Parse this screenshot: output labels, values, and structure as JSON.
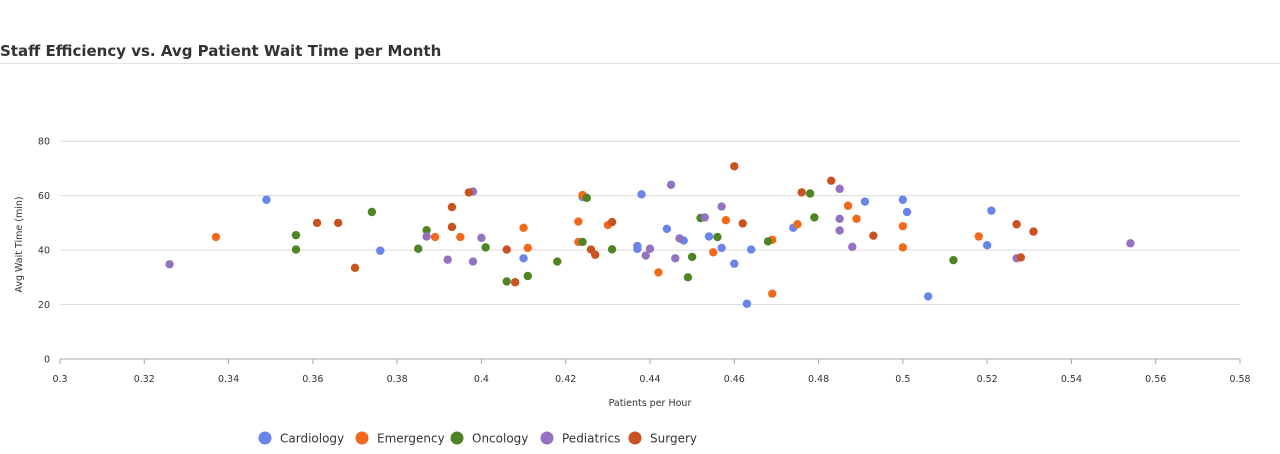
{
  "colors": {
    "Cardiology": "#6b84ea",
    "Emergency": "#f2691e",
    "Oncology": "#4f8424",
    "Pediatrics": "#9373c0",
    "Surgery": "#c9521f",
    "grid": "#dcdcdc",
    "axis": "#a8a8a8"
  },
  "chart_data": {
    "type": "scatter",
    "title": "Staff Efficiency vs. Avg Patient Wait Time per Month",
    "xlabel": "Patients per Hour",
    "ylabel": "Avg Wait Time (min)",
    "xlim": [
      0.3,
      0.58
    ],
    "ylim": [
      0,
      90
    ],
    "x_ticks": [
      "0.3",
      "0.32",
      "0.34",
      "0.36",
      "0.38",
      "0.4",
      "0.42",
      "0.44",
      "0.46",
      "0.48",
      "0.5",
      "0.52",
      "0.54",
      "0.56",
      "0.58"
    ],
    "y_ticks": [
      "0",
      "20",
      "40",
      "60",
      "80"
    ],
    "grid": true,
    "legend_position": "bottom",
    "series": [
      {
        "name": "Cardiology",
        "points": [
          [
            0.349,
            58.5
          ],
          [
            0.376,
            39.8
          ],
          [
            0.41,
            37.0
          ],
          [
            0.424,
            59.5
          ],
          [
            0.437,
            40.5
          ],
          [
            0.437,
            41.5
          ],
          [
            0.438,
            60.5
          ],
          [
            0.444,
            47.8
          ],
          [
            0.448,
            43.5
          ],
          [
            0.454,
            45.0
          ],
          [
            0.457,
            40.8
          ],
          [
            0.46,
            35.0
          ],
          [
            0.463,
            20.3
          ],
          [
            0.464,
            40.2
          ],
          [
            0.474,
            48.2
          ],
          [
            0.491,
            57.8
          ],
          [
            0.5,
            58.5
          ],
          [
            0.501,
            54.0
          ],
          [
            0.506,
            23.0
          ],
          [
            0.52,
            41.8
          ],
          [
            0.521,
            54.5
          ]
        ]
      },
      {
        "name": "Emergency",
        "points": [
          [
            0.337,
            44.8
          ],
          [
            0.389,
            44.8
          ],
          [
            0.395,
            44.8
          ],
          [
            0.41,
            48.2
          ],
          [
            0.411,
            40.8
          ],
          [
            0.423,
            50.5
          ],
          [
            0.423,
            43.0
          ],
          [
            0.424,
            60.2
          ],
          [
            0.43,
            49.2
          ],
          [
            0.442,
            31.8
          ],
          [
            0.455,
            39.2
          ],
          [
            0.458,
            51.0
          ],
          [
            0.469,
            24.0
          ],
          [
            0.469,
            43.8
          ],
          [
            0.475,
            49.5
          ],
          [
            0.487,
            56.3
          ],
          [
            0.489,
            51.5
          ],
          [
            0.5,
            48.8
          ],
          [
            0.5,
            41.0
          ],
          [
            0.518,
            45.0
          ]
        ]
      },
      {
        "name": "Oncology",
        "points": [
          [
            0.356,
            40.2
          ],
          [
            0.356,
            45.5
          ],
          [
            0.374,
            54.0
          ],
          [
            0.385,
            40.5
          ],
          [
            0.387,
            47.3
          ],
          [
            0.401,
            41.0
          ],
          [
            0.406,
            28.5
          ],
          [
            0.411,
            30.5
          ],
          [
            0.418,
            35.8
          ],
          [
            0.424,
            43.0
          ],
          [
            0.425,
            59.2
          ],
          [
            0.431,
            40.3
          ],
          [
            0.449,
            30.0
          ],
          [
            0.45,
            37.5
          ],
          [
            0.452,
            51.8
          ],
          [
            0.456,
            44.8
          ],
          [
            0.468,
            43.2
          ],
          [
            0.478,
            60.8
          ],
          [
            0.479,
            52.0
          ],
          [
            0.512,
            36.3
          ]
        ]
      },
      {
        "name": "Pediatrics",
        "points": [
          [
            0.326,
            34.8
          ],
          [
            0.387,
            45.0
          ],
          [
            0.392,
            36.5
          ],
          [
            0.398,
            61.5
          ],
          [
            0.398,
            35.8
          ],
          [
            0.4,
            44.5
          ],
          [
            0.439,
            38.0
          ],
          [
            0.44,
            40.5
          ],
          [
            0.445,
            64.0
          ],
          [
            0.446,
            37.0
          ],
          [
            0.447,
            44.3
          ],
          [
            0.453,
            52.0
          ],
          [
            0.457,
            56.0
          ],
          [
            0.485,
            51.5
          ],
          [
            0.485,
            62.5
          ],
          [
            0.485,
            47.2
          ],
          [
            0.488,
            41.2
          ],
          [
            0.527,
            37.0
          ],
          [
            0.554,
            42.5
          ]
        ]
      },
      {
        "name": "Surgery",
        "points": [
          [
            0.361,
            50.0
          ],
          [
            0.366,
            50.0
          ],
          [
            0.37,
            33.5
          ],
          [
            0.393,
            48.5
          ],
          [
            0.393,
            55.8
          ],
          [
            0.397,
            61.2
          ],
          [
            0.406,
            40.2
          ],
          [
            0.408,
            28.2
          ],
          [
            0.426,
            40.2
          ],
          [
            0.427,
            38.3
          ],
          [
            0.431,
            50.3
          ],
          [
            0.46,
            70.8
          ],
          [
            0.462,
            49.8
          ],
          [
            0.476,
            61.2
          ],
          [
            0.483,
            65.5
          ],
          [
            0.493,
            45.3
          ],
          [
            0.527,
            49.5
          ],
          [
            0.528,
            37.3
          ],
          [
            0.531,
            46.8
          ]
        ]
      }
    ]
  }
}
